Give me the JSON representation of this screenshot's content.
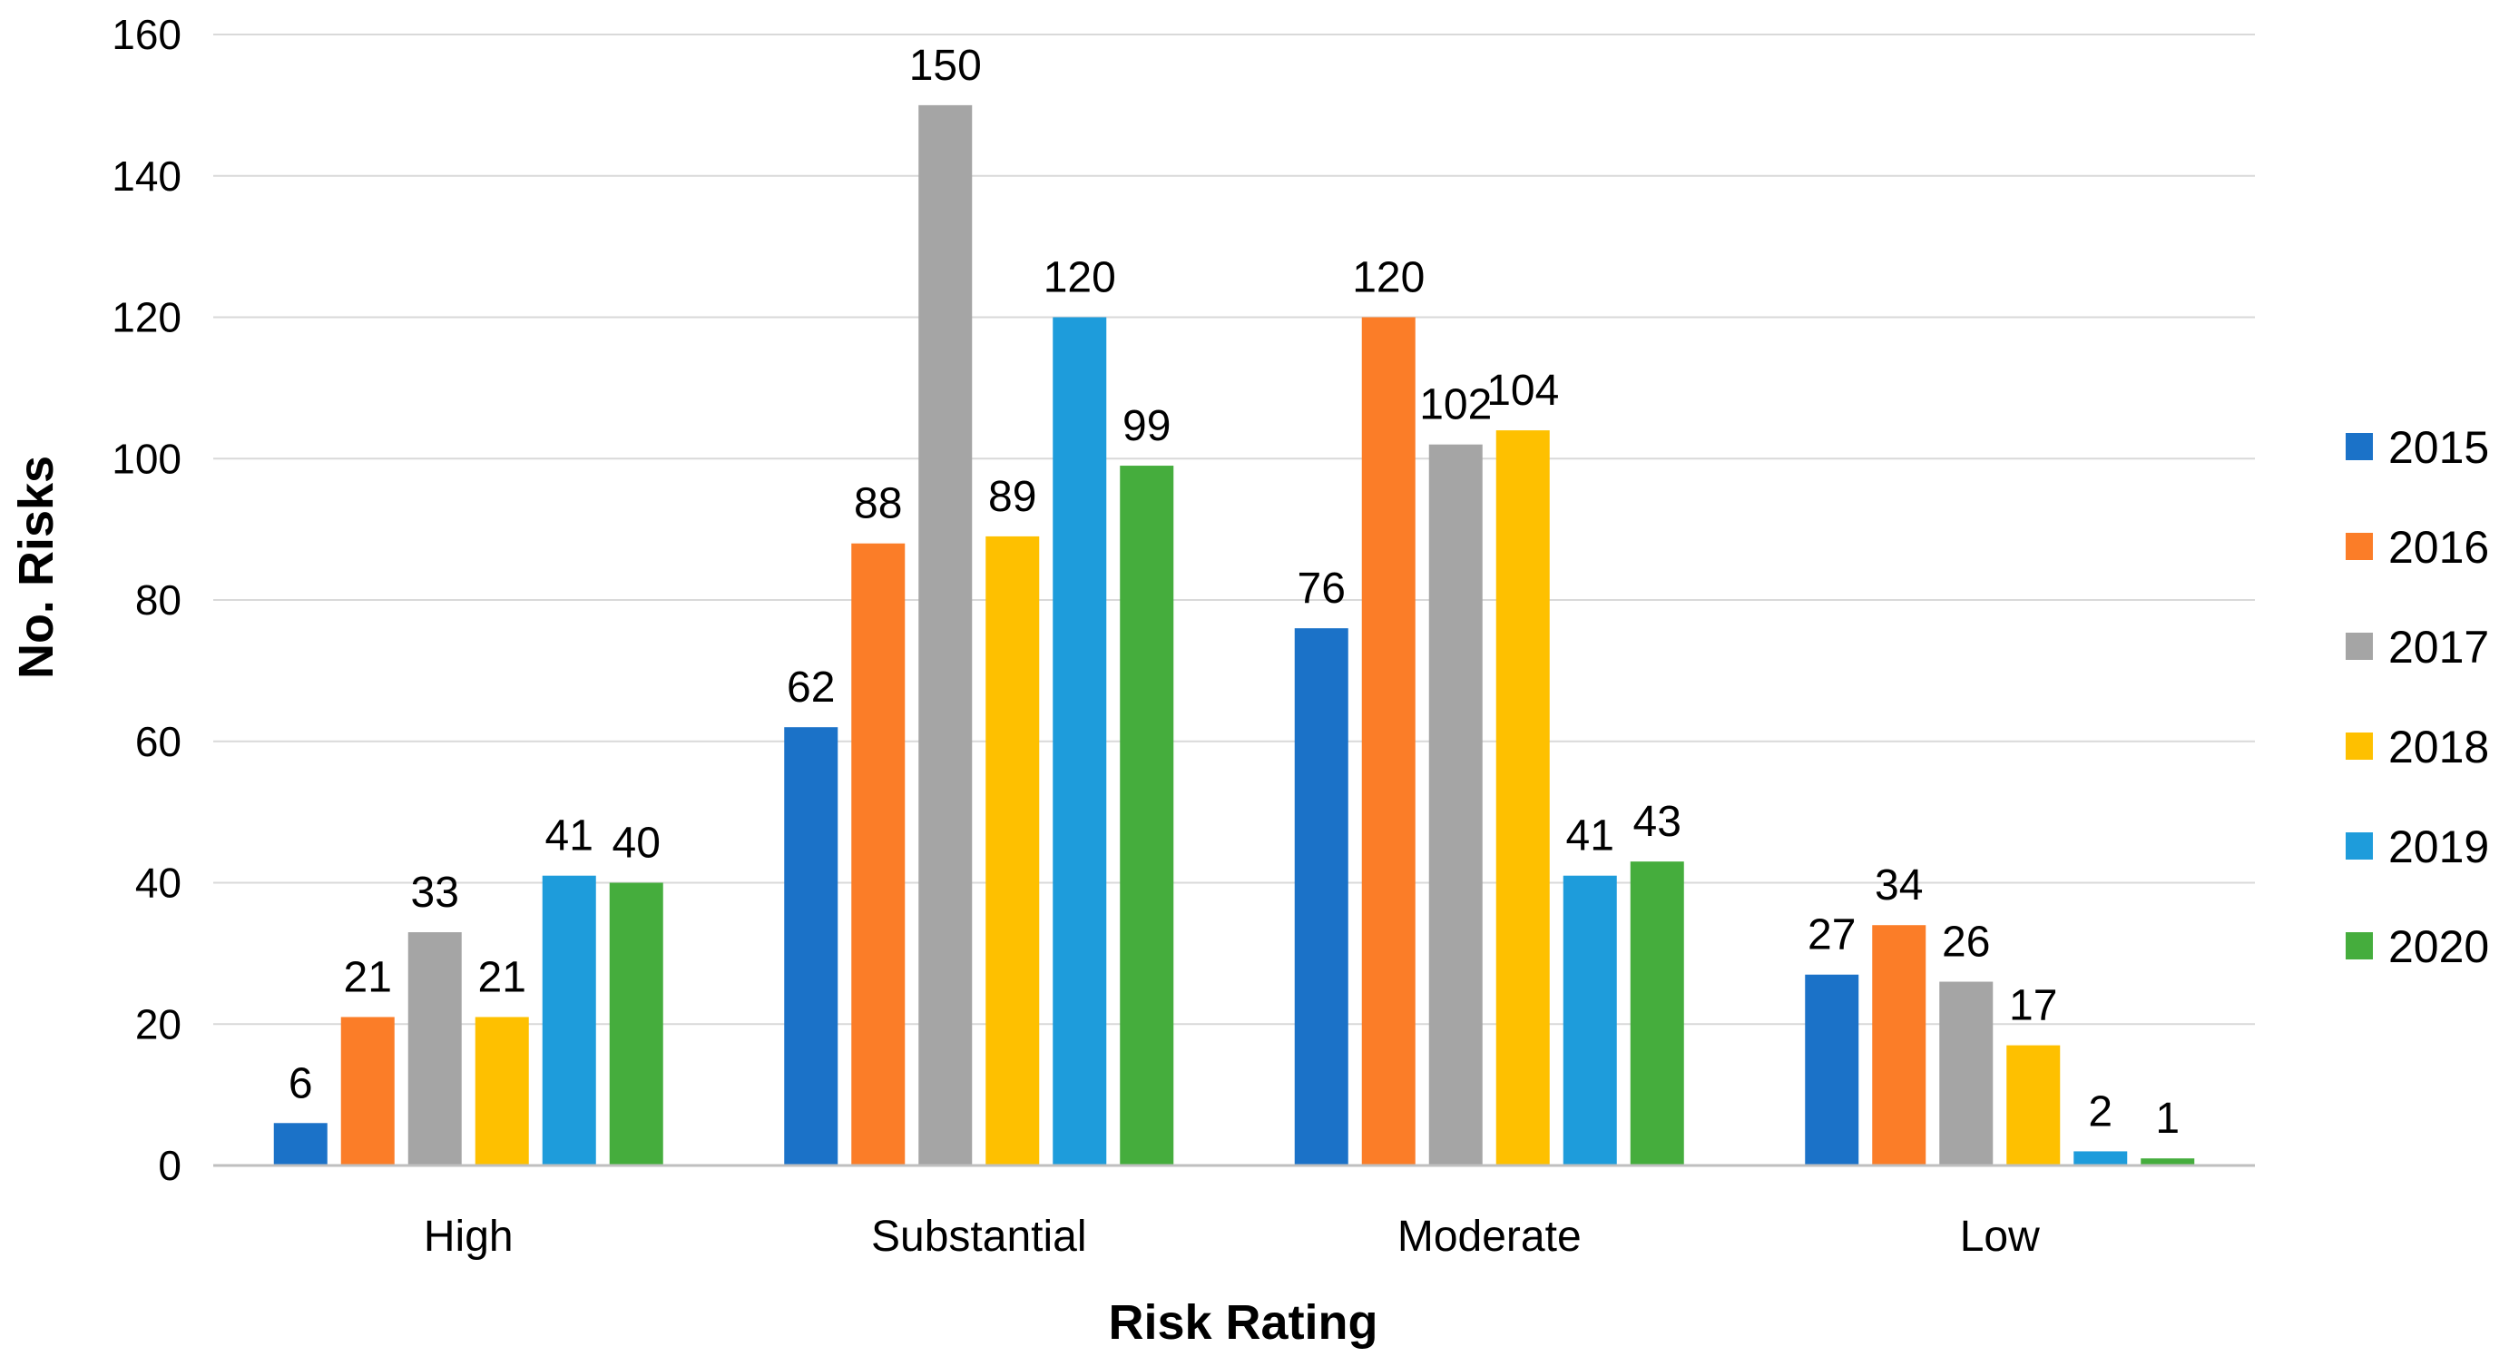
{
  "chart_data": {
    "type": "bar",
    "title": "",
    "xlabel": "Risk Rating",
    "ylabel": "No. Risks",
    "ylim": [
      0,
      160
    ],
    "yticks": [
      0,
      20,
      40,
      60,
      80,
      100,
      120,
      140,
      160
    ],
    "categories": [
      "High",
      "Substantial",
      "Moderate",
      "Low"
    ],
    "series": [
      {
        "name": "2015",
        "color": "#1b72c8",
        "values": [
          6,
          62,
          76,
          27
        ]
      },
      {
        "name": "2016",
        "color": "#fb7d28",
        "values": [
          21,
          88,
          120,
          34
        ]
      },
      {
        "name": "2017",
        "color": "#a5a5a5",
        "values": [
          33,
          150,
          102,
          26
        ]
      },
      {
        "name": "2018",
        "color": "#fec000",
        "values": [
          21,
          89,
          104,
          17
        ]
      },
      {
        "name": "2019",
        "color": "#1e9cdb",
        "values": [
          41,
          120,
          41,
          2
        ]
      },
      {
        "name": "2020",
        "color": "#45ad3d",
        "values": [
          40,
          99,
          43,
          1
        ]
      }
    ],
    "data_labels": true,
    "grid": true,
    "legend_position": "right"
  }
}
